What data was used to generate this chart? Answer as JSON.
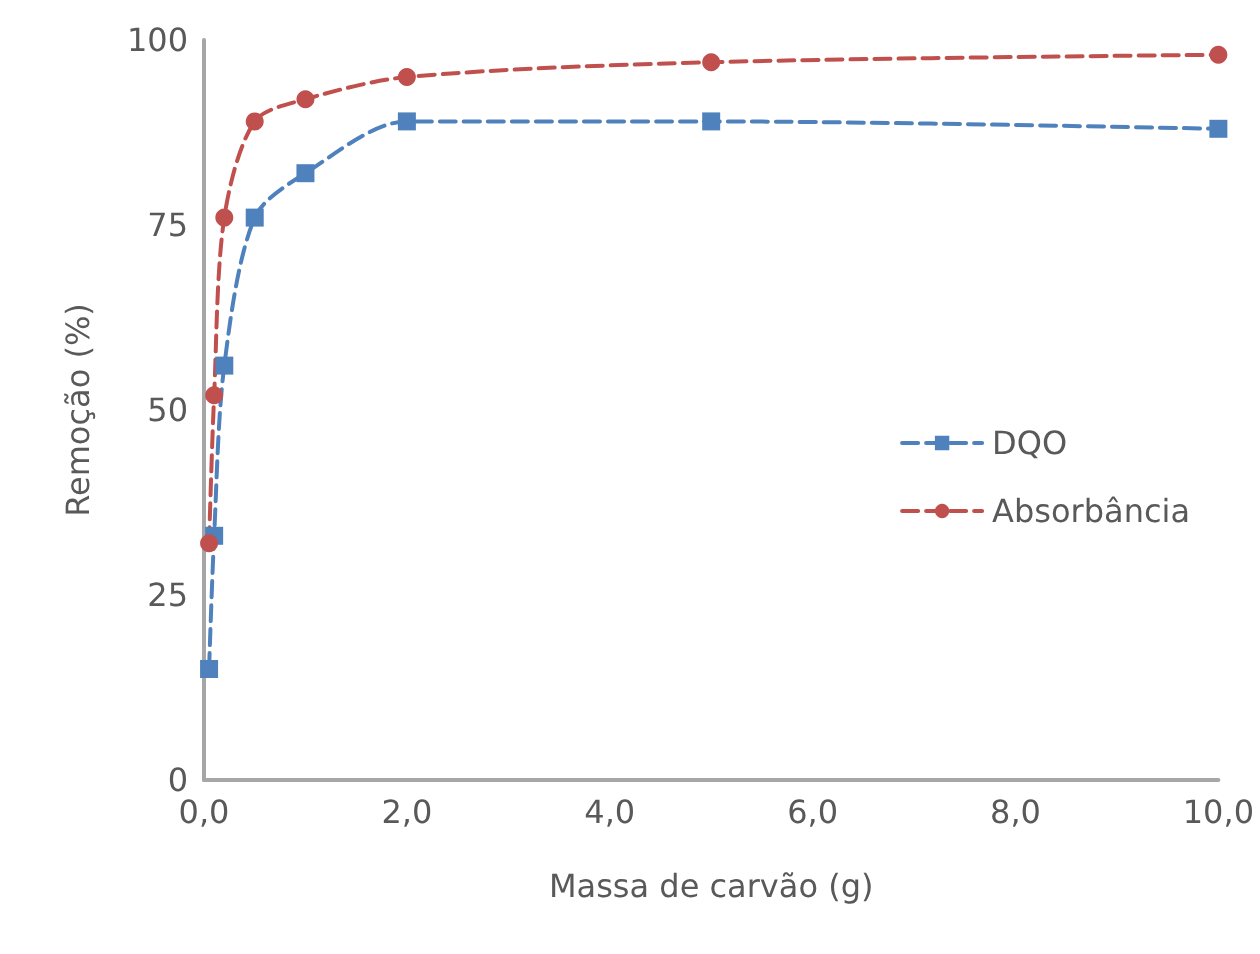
{
  "chart_data": {
    "type": "line",
    "xlabel": "Massa de carvão (g)",
    "ylabel": "Remoção (%)",
    "xlim": [
      0,
      10
    ],
    "xticks": [
      {
        "value": 0,
        "label": "0,0"
      },
      {
        "value": 2,
        "label": "2,0"
      },
      {
        "value": 4,
        "label": "4,0"
      },
      {
        "value": 6,
        "label": "6,0"
      },
      {
        "value": 8,
        "label": "8,0"
      },
      {
        "value": 10,
        "label": "10,0"
      }
    ],
    "ylim": [
      0,
      100
    ],
    "yticks": [
      0,
      25,
      50,
      75,
      100
    ],
    "grid": false,
    "legend": "right",
    "line_style": "dashed",
    "series": [
      {
        "name": "DQO",
        "color": "#4f81bd",
        "marker": "square",
        "x": [
          0.05,
          0.1,
          0.2,
          0.5,
          1,
          2,
          5,
          10
        ],
        "values": [
          15,
          33,
          56,
          76,
          82,
          89,
          89,
          88
        ]
      },
      {
        "name": "Absorbância",
        "color": "#c0504d",
        "marker": "circle",
        "x": [
          0.05,
          0.1,
          0.2,
          0.5,
          1,
          2,
          5,
          10
        ],
        "values": [
          32,
          52,
          76,
          89,
          92,
          95,
          97,
          98
        ]
      }
    ]
  }
}
